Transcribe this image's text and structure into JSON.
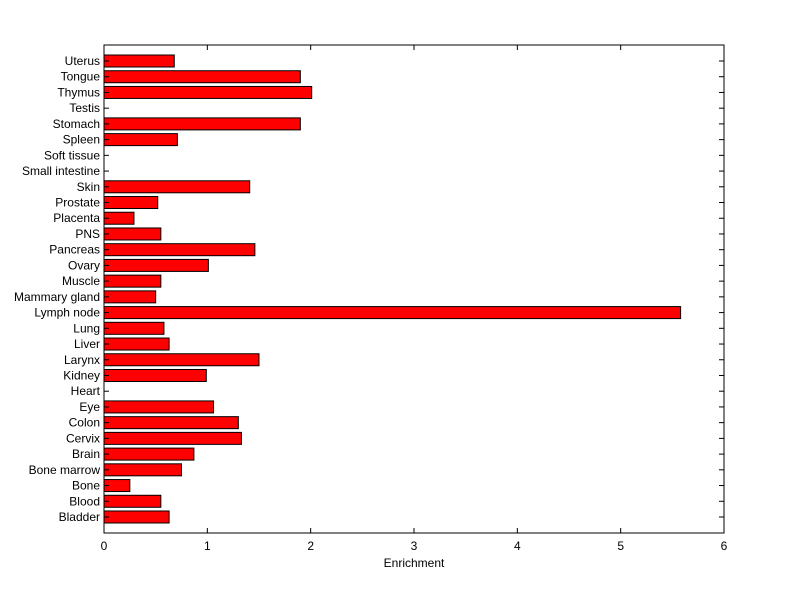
{
  "chart_data": {
    "type": "bar",
    "orientation": "horizontal",
    "categories": [
      "Uterus",
      "Tongue",
      "Thymus",
      "Testis",
      "Stomach",
      "Spleen",
      "Soft tissue",
      "Small intestine",
      "Skin",
      "Prostate",
      "Placenta",
      "PNS",
      "Pancreas",
      "Ovary",
      "Muscle",
      "Mammary gland",
      "Lymph node",
      "Lung",
      "Liver",
      "Larynx",
      "Kidney",
      "Heart",
      "Eye",
      "Colon",
      "Cervix",
      "Brain",
      "Bone marrow",
      "Bone",
      "Blood",
      "Bladder"
    ],
    "values": [
      0.68,
      1.9,
      2.01,
      0,
      1.9,
      0.71,
      0,
      0,
      1.41,
      0.52,
      0.29,
      0.55,
      1.46,
      1.01,
      0.55,
      0.5,
      5.58,
      0.58,
      0.63,
      1.5,
      0.99,
      0,
      1.06,
      1.3,
      1.33,
      0.87,
      0.75,
      0.25,
      0.55,
      0.63
    ],
    "xlabel": "Enrichment",
    "ylabel": "",
    "xlim": [
      0,
      6
    ],
    "xticks": [
      "0",
      "1",
      "2",
      "3",
      "4",
      "5",
      "6"
    ],
    "bar_color": "#ff0000",
    "edge_color": "#000000",
    "grid": false
  }
}
